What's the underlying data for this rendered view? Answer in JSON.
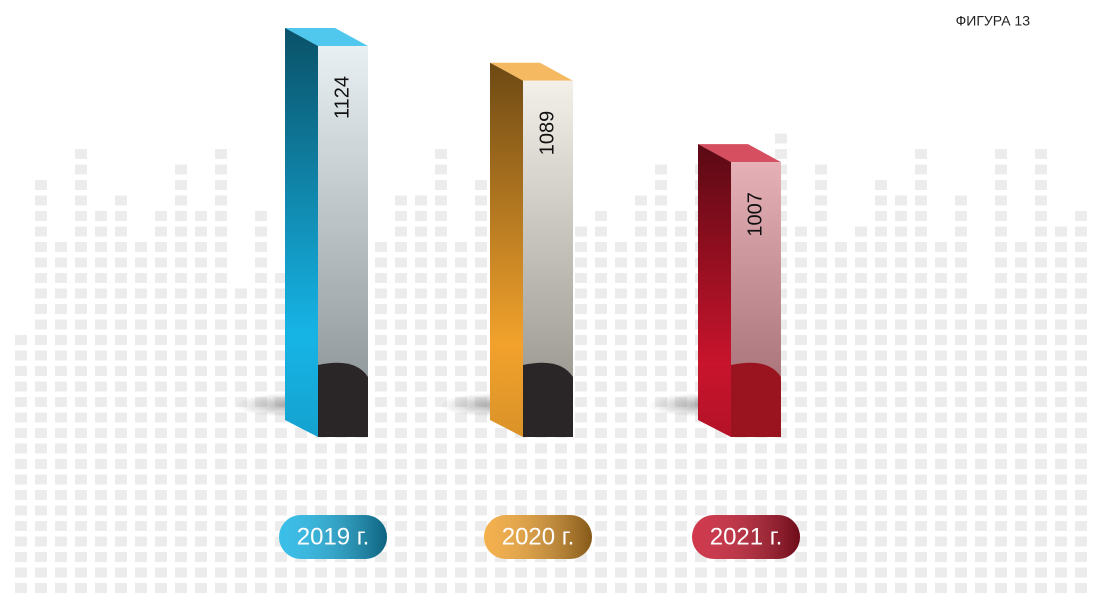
{
  "chart_data": {
    "type": "bar3d",
    "title": "ФИГУРА 13",
    "categories": [
      "2019 г.",
      "2020 г.",
      "2021 г."
    ],
    "values": [
      1124,
      1089,
      1007
    ],
    "colors": [
      "#16b4e6",
      "#f2a22c",
      "#c8142c"
    ],
    "ylim": [
      730,
      1130
    ]
  }
}
